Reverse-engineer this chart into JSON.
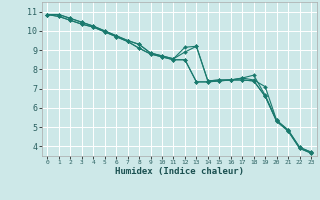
{
  "xlabel": "Humidex (Indice chaleur)",
  "bg_color": "#cde8e8",
  "grid_color": "#ffffff",
  "line_color": "#1a7a6e",
  "xlim": [
    -0.5,
    23.5
  ],
  "ylim": [
    3.5,
    11.5
  ],
  "yticks": [
    4,
    5,
    6,
    7,
    8,
    9,
    10,
    11
  ],
  "xticks": [
    0,
    1,
    2,
    3,
    4,
    5,
    6,
    7,
    8,
    9,
    10,
    11,
    12,
    13,
    14,
    15,
    16,
    17,
    18,
    19,
    20,
    21,
    22,
    23
  ],
  "lines": [
    {
      "x": [
        0,
        1,
        2,
        3,
        4,
        5,
        6,
        7,
        8,
        9,
        10,
        11,
        12,
        13,
        14,
        15,
        16,
        17,
        18,
        19,
        20,
        21,
        22,
        23
      ],
      "y": [
        10.85,
        10.85,
        10.65,
        10.45,
        10.25,
        10.0,
        9.75,
        9.5,
        9.3,
        8.85,
        8.7,
        8.55,
        9.15,
        9.2,
        7.4,
        7.45,
        7.45,
        7.55,
        7.45,
        7.1,
        5.35,
        4.85,
        3.95,
        3.7
      ]
    },
    {
      "x": [
        0,
        1,
        2,
        3,
        4,
        5,
        6,
        7,
        8,
        9,
        10,
        11,
        12,
        13,
        14,
        15,
        16,
        17,
        18,
        19,
        20,
        21,
        22,
        23
      ],
      "y": [
        10.85,
        10.85,
        10.65,
        10.45,
        10.25,
        10.0,
        9.75,
        9.5,
        9.3,
        8.85,
        8.7,
        8.55,
        8.9,
        9.2,
        7.4,
        7.45,
        7.45,
        7.55,
        7.7,
        6.65,
        5.35,
        4.85,
        3.95,
        3.7
      ]
    },
    {
      "x": [
        0,
        1,
        2,
        3,
        4,
        5,
        6,
        7,
        8,
        9,
        10,
        11,
        12,
        13,
        14,
        15,
        16,
        17,
        18,
        19,
        20,
        21,
        22,
        23
      ],
      "y": [
        10.85,
        10.75,
        10.55,
        10.35,
        10.2,
        9.95,
        9.7,
        9.45,
        9.1,
        8.8,
        8.65,
        8.5,
        8.5,
        7.35,
        7.35,
        7.4,
        7.45,
        7.45,
        7.4,
        6.6,
        5.3,
        4.8,
        3.9,
        3.65
      ]
    },
    {
      "x": [
        0,
        1,
        2,
        3,
        4,
        5,
        6,
        7,
        8,
        9,
        10,
        11,
        12,
        13,
        14,
        15,
        16,
        17,
        18,
        19,
        20,
        21,
        22,
        23
      ],
      "y": [
        10.85,
        10.75,
        10.55,
        10.35,
        10.2,
        9.95,
        9.7,
        9.45,
        9.1,
        8.8,
        8.65,
        8.5,
        8.5,
        7.35,
        7.35,
        7.4,
        7.45,
        7.45,
        7.4,
        6.6,
        5.3,
        4.8,
        3.9,
        3.65
      ]
    }
  ]
}
